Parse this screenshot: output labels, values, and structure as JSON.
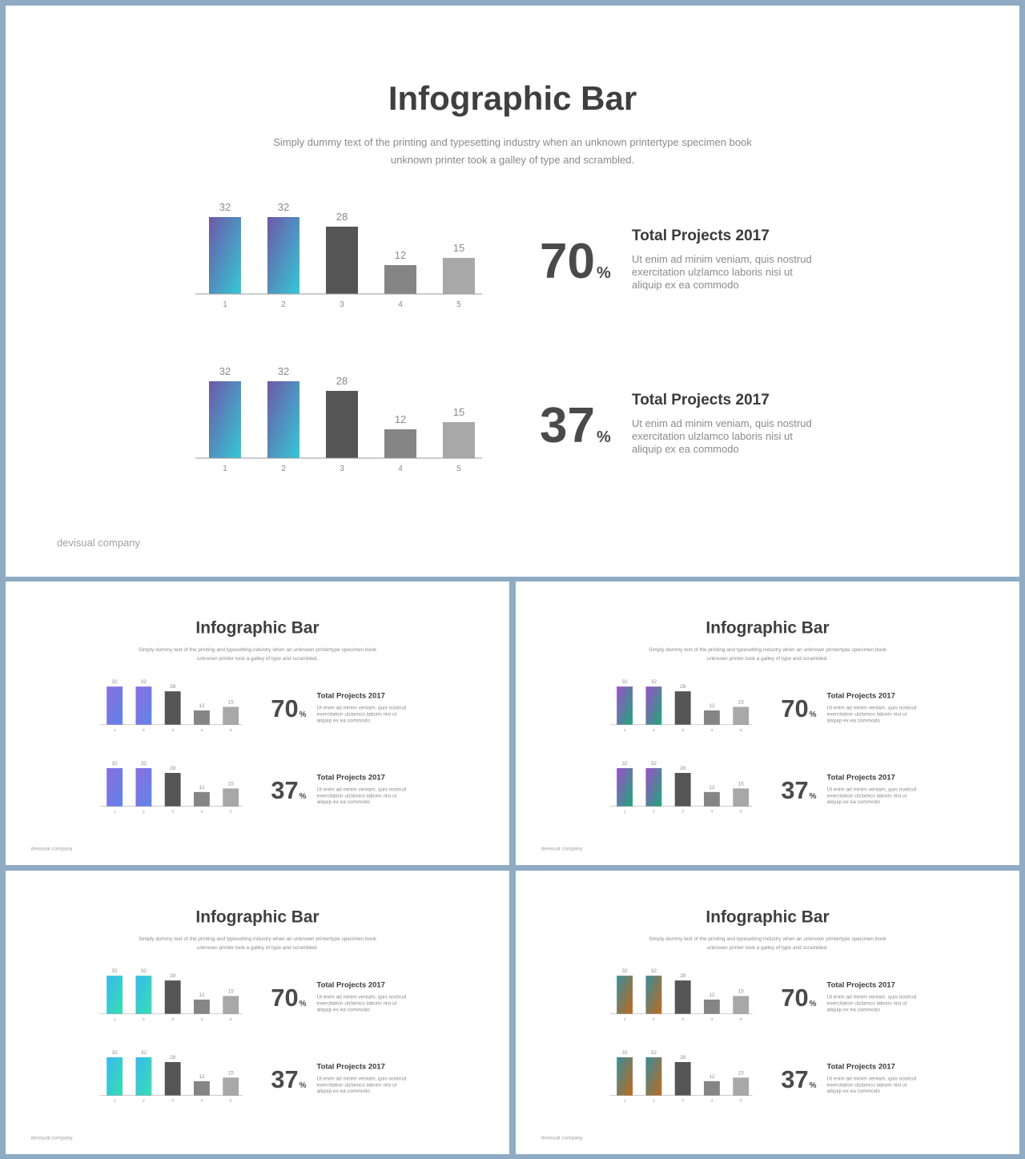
{
  "palette": {
    "background": "#8fabc4",
    "bar3": "#555555",
    "bar4": "#858585",
    "bar5": "#a8a8a8"
  },
  "slides": [
    {
      "title": "Infographic Bar",
      "subtitle_line1": "Simply dummy text of the printing and typesetting industry when an unknown printertype specimen book",
      "subtitle_line2": "unknown printer took a galley of type and scrambled.",
      "footer": "devisual company",
      "gradient": [
        "#6e57a8",
        "#33c9d6"
      ],
      "blocks": [
        {
          "percent": "70",
          "percent_symbol": "%",
          "info_title": "Total Projects 2017",
          "info_text": "Ut enim ad minim veniam, quis nostrud exercitation ulzlamco laboris nisi ut aliquip ex ea commodo"
        },
        {
          "percent": "37",
          "percent_symbol": "%",
          "info_title": "Total Projects 2017",
          "info_text": "Ut enim ad minim veniam, quis nostrud exercitation ulzlamco laboris nisi ut aliquip ex ea commodo"
        }
      ]
    },
    {
      "title": "Infographic Bar",
      "subtitle_line1": "Simply dummy text of the printing and typesetting industry when an unknown printertype specimen book",
      "subtitle_line2": "unknown printer took a galley of type and scrambled.",
      "footer": "devisual company",
      "gradient": [
        "#8a6ee0",
        "#5f85e8"
      ],
      "blocks": [
        {
          "percent": "70",
          "percent_symbol": "%",
          "info_title": "Total Projects 2017",
          "info_text": "Ut enim ad minim veniam, quis nostrud exercitation ulzlamco laboris nisi ut aliquip ex ea commodo"
        },
        {
          "percent": "37",
          "percent_symbol": "%",
          "info_title": "Total Projects 2017",
          "info_text": "Ut enim ad minim veniam, quis nostrud exercitation ulzlamco laboris nisi ut aliquip ex ea commodo"
        }
      ]
    },
    {
      "title": "Infographic Bar",
      "subtitle_line1": "Simply dummy text of the printing and typesetting industry when an unknown printertype specimen book",
      "subtitle_line2": "unknown printer took a galley of type and scrambled.",
      "footer": "devisual company",
      "gradient": [
        "#9b4fc9",
        "#1fa877"
      ],
      "blocks": [
        {
          "percent": "70",
          "percent_symbol": "%",
          "info_title": "Total Projects 2017",
          "info_text": "Ut enim ad minim veniam, quis nostrud exercitation ulzlamco laboris nisi ut aliquip ex ea commodo"
        },
        {
          "percent": "37",
          "percent_symbol": "%",
          "info_title": "Total Projects 2017",
          "info_text": "Ut enim ad minim veniam, quis nostrud exercitation ulzlamco laboris nisi ut aliquip ex ea commodo"
        }
      ]
    },
    {
      "title": "Infographic Bar",
      "subtitle_line1": "Simply dummy text of the printing and typesetting industry when an unknown printertype specimen book",
      "subtitle_line2": "unknown printer took a galley of type and scrambled.",
      "footer": "devisual company",
      "gradient": [
        "#3ab8ee",
        "#36e0b0"
      ],
      "blocks": [
        {
          "percent": "70",
          "percent_symbol": "%",
          "info_title": "Total Projects 2017",
          "info_text": "Ut enim ad minim veniam, quis nostrud exercitation ulzlamco laboris nisi ut aliquip ex ea commodo"
        },
        {
          "percent": "37",
          "percent_symbol": "%",
          "info_title": "Total Projects 2017",
          "info_text": "Ut enim ad minim veniam, quis nostrud exercitation ulzlamco laboris nisi ut aliquip ex ea commodo"
        }
      ]
    },
    {
      "title": "Infographic Bar",
      "subtitle_line1": "Simply dummy text of the printing and typesetting industry when an unknown printertype specimen book",
      "subtitle_line2": "unknown printer took a galley of type and scrambled.",
      "footer": "devisual company",
      "gradient": [
        "#3a8c9a",
        "#c06a1e"
      ],
      "blocks": [
        {
          "percent": "70",
          "percent_symbol": "%",
          "info_title": "Total Projects 2017",
          "info_text": "Ut enim ad minim veniam, quis nostrud exercitation ulzlamco laboris nisi ut aliquip ex ea commodo"
        },
        {
          "percent": "37",
          "percent_symbol": "%",
          "info_title": "Total Projects 2017",
          "info_text": "Ut enim ad minim veniam, quis nostrud exercitation ulzlamco laboris nisi ut aliquip ex ea commodo"
        }
      ]
    }
  ],
  "chart_data": {
    "type": "bar",
    "categories": [
      "1",
      "2",
      "3",
      "4",
      "5"
    ],
    "values": [
      32,
      32,
      28,
      12,
      15
    ],
    "value_labels": [
      "32",
      "32",
      "28",
      "12",
      "15"
    ],
    "ylim": [
      0,
      32
    ],
    "grid": false,
    "title": "",
    "xlabel": "",
    "ylabel": ""
  }
}
